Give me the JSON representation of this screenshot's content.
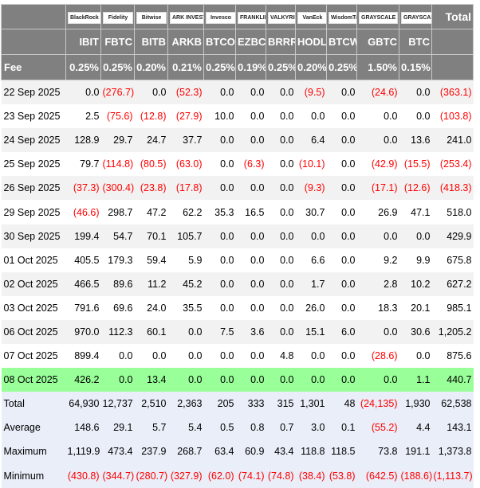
{
  "header": {
    "logos": [
      "BlackRock",
      "Fidelity",
      "Bitwise",
      "ARK INVEST",
      "Invesco",
      "FRANKLIN TEMPLETON",
      "VALKYRIE",
      "VanEck",
      "WisdomTree",
      "GRAYSCALE",
      "GRAYSCALE"
    ],
    "total_label": "Total",
    "tickers": [
      "IBIT",
      "FBTC",
      "BITB",
      "ARKB",
      "BTCO",
      "EZBC",
      "BRRR",
      "HODL",
      "BTCW",
      "GBTC",
      "BTC"
    ],
    "fee_label": "Fee",
    "fees": [
      "0.25%",
      "0.25%",
      "0.20%",
      "0.21%",
      "0.25%",
      "0.19%",
      "0.25%",
      "0.20%",
      "0.25%",
      "1.50%",
      "0.15%"
    ]
  },
  "rows": [
    {
      "date": "22 Sep 2025",
      "values": [
        "0.0",
        "(276.7)",
        "0.0",
        "(52.3)",
        "0.0",
        "0.0",
        "0.0",
        "(9.5)",
        "0.0",
        "(24.6)",
        "0.0",
        "(363.1)"
      ]
    },
    {
      "date": "23 Sep 2025",
      "values": [
        "2.5",
        "(75.6)",
        "(12.8)",
        "(27.9)",
        "10.0",
        "0.0",
        "0.0",
        "0.0",
        "0.0",
        "0.0",
        "0.0",
        "(103.8)"
      ]
    },
    {
      "date": "24 Sep 2025",
      "values": [
        "128.9",
        "29.7",
        "24.7",
        "37.7",
        "0.0",
        "0.0",
        "0.0",
        "6.4",
        "0.0",
        "0.0",
        "13.6",
        "241.0"
      ]
    },
    {
      "date": "25 Sep 2025",
      "values": [
        "79.7",
        "(114.8)",
        "(80.5)",
        "(63.0)",
        "0.0",
        "(6.3)",
        "0.0",
        "(10.1)",
        "0.0",
        "(42.9)",
        "(15.5)",
        "(253.4)"
      ]
    },
    {
      "date": "26 Sep 2025",
      "values": [
        "(37.3)",
        "(300.4)",
        "(23.8)",
        "(17.8)",
        "0.0",
        "0.0",
        "0.0",
        "(9.3)",
        "0.0",
        "(17.1)",
        "(12.6)",
        "(418.3)"
      ]
    },
    {
      "date": "29 Sep 2025",
      "values": [
        "(46.6)",
        "298.7",
        "47.2",
        "62.2",
        "35.3",
        "16.5",
        "0.0",
        "30.7",
        "0.0",
        "26.9",
        "47.1",
        "518.0"
      ]
    },
    {
      "date": "30 Sep 2025",
      "values": [
        "199.4",
        "54.7",
        "70.1",
        "105.7",
        "0.0",
        "0.0",
        "0.0",
        "0.0",
        "0.0",
        "0.0",
        "0.0",
        "429.9"
      ]
    },
    {
      "date": "01 Oct 2025",
      "values": [
        "405.5",
        "179.3",
        "59.4",
        "5.9",
        "0.0",
        "0.0",
        "0.0",
        "6.6",
        "0.0",
        "9.2",
        "9.9",
        "675.8"
      ]
    },
    {
      "date": "02 Oct 2025",
      "values": [
        "466.5",
        "89.6",
        "11.2",
        "45.2",
        "0.0",
        "0.0",
        "0.0",
        "1.7",
        "0.0",
        "2.8",
        "10.2",
        "627.2"
      ]
    },
    {
      "date": "03 Oct 2025",
      "values": [
        "791.6",
        "69.6",
        "24.0",
        "35.5",
        "0.0",
        "0.0",
        "0.0",
        "26.0",
        "0.0",
        "18.3",
        "20.1",
        "985.1"
      ]
    },
    {
      "date": "06 Oct 2025",
      "values": [
        "970.0",
        "112.3",
        "60.1",
        "0.0",
        "7.5",
        "3.6",
        "0.0",
        "15.1",
        "6.0",
        "0.0",
        "30.6",
        "1,205.2"
      ]
    },
    {
      "date": "07 Oct 2025",
      "values": [
        "899.4",
        "0.0",
        "0.0",
        "0.0",
        "0.0",
        "0.0",
        "4.8",
        "0.0",
        "0.0",
        "(28.6)",
        "0.0",
        "875.6"
      ]
    },
    {
      "date": "08 Oct 2025",
      "values": [
        "426.2",
        "0.0",
        "13.4",
        "0.0",
        "0.0",
        "0.0",
        "0.0",
        "0.0",
        "0.0",
        "0.0",
        "1.1",
        "440.7"
      ]
    }
  ],
  "summary": [
    {
      "label": "Total",
      "values": [
        "64,930",
        "12,737",
        "2,510",
        "2,363",
        "205",
        "333",
        "315",
        "1,301",
        "48",
        "(24,135)",
        "1,930",
        "62,538"
      ]
    },
    {
      "label": "Average",
      "values": [
        "148.6",
        "29.1",
        "5.7",
        "5.4",
        "0.5",
        "0.8",
        "0.7",
        "3.0",
        "0.1",
        "(55.2)",
        "4.4",
        "143.1"
      ]
    },
    {
      "label": "Maximum",
      "values": [
        "1,119.9",
        "473.4",
        "237.9",
        "268.7",
        "63.4",
        "60.9",
        "43.4",
        "118.8",
        "118.5",
        "73.8",
        "191.1",
        "1,373.8"
      ]
    },
    {
      "label": "Minimum",
      "values": [
        "(430.8)",
        "(344.7)",
        "(280.7)",
        "(327.9)",
        "(62.0)",
        "(74.1)",
        "(74.8)",
        "(38.4)",
        "(53.8)",
        "(642.5)",
        "(188.6)",
        "(1,113.7)"
      ]
    }
  ],
  "colors": {
    "header_bg": "#808080",
    "highlight": "#99ff99",
    "negative": "#ff0000",
    "summary_bg": "#e9eef8"
  }
}
